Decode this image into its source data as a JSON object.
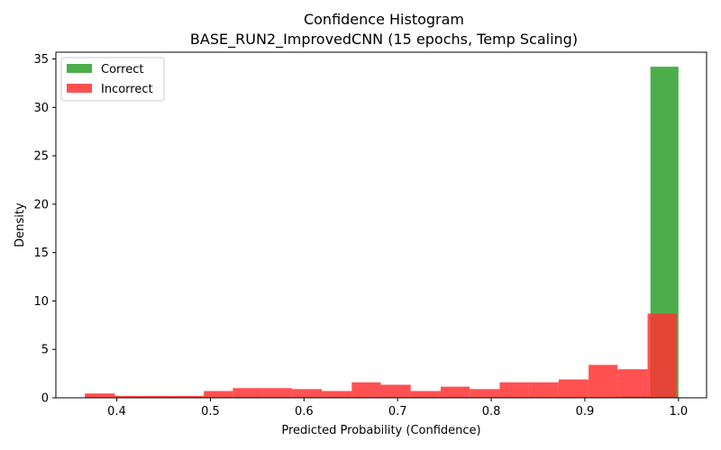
{
  "chart_data": {
    "type": "histogram",
    "title": "Confidence Histogram",
    "subtitle": "BASE_RUN2_ImprovedCNN (15 epochs, Temp Scaling)",
    "xlabel": "Predicted Probability (Confidence)",
    "ylabel": "Density",
    "xlim": [
      0.335,
      1.03
    ],
    "ylim": [
      0,
      35.7
    ],
    "xticks": [
      0.4,
      0.5,
      0.6,
      0.7,
      0.8,
      0.9,
      1.0
    ],
    "xtick_labels": [
      "0.4",
      "0.5",
      "0.6",
      "0.7",
      "0.8",
      "0.9",
      "1.0"
    ],
    "yticks": [
      0,
      5,
      10,
      15,
      20,
      25,
      30,
      35
    ],
    "ytick_labels": [
      "0",
      "5",
      "10",
      "15",
      "20",
      "25",
      "30",
      "35"
    ],
    "grid": false,
    "legend_position": "top-left",
    "series": [
      {
        "name": "Correct",
        "color": "#2ca02c",
        "alpha": 0.85,
        "bins": [
          [
            0.905,
            0.94,
            0.05
          ],
          [
            0.94,
            0.97,
            0.15
          ],
          [
            0.97,
            1.0,
            34.2
          ]
        ]
      },
      {
        "name": "Incorrect",
        "color": "#ff3333",
        "alpha": 0.85,
        "bins": [
          [
            0.366,
            0.398,
            0.45
          ],
          [
            0.398,
            0.429,
            0.2
          ],
          [
            0.429,
            0.461,
            0.2
          ],
          [
            0.461,
            0.493,
            0.2
          ],
          [
            0.493,
            0.524,
            0.7
          ],
          [
            0.524,
            0.556,
            1.0
          ],
          [
            0.556,
            0.587,
            1.0
          ],
          [
            0.587,
            0.619,
            0.9
          ],
          [
            0.619,
            0.651,
            0.7
          ],
          [
            0.651,
            0.682,
            1.6
          ],
          [
            0.682,
            0.714,
            1.35
          ],
          [
            0.714,
            0.746,
            0.7
          ],
          [
            0.746,
            0.777,
            1.15
          ],
          [
            0.777,
            0.809,
            0.9
          ],
          [
            0.809,
            0.84,
            1.6
          ],
          [
            0.84,
            0.872,
            1.6
          ],
          [
            0.872,
            0.904,
            1.9
          ],
          [
            0.904,
            0.935,
            3.4
          ],
          [
            0.935,
            0.967,
            2.95
          ],
          [
            0.967,
            0.998,
            8.7
          ]
        ]
      }
    ]
  }
}
